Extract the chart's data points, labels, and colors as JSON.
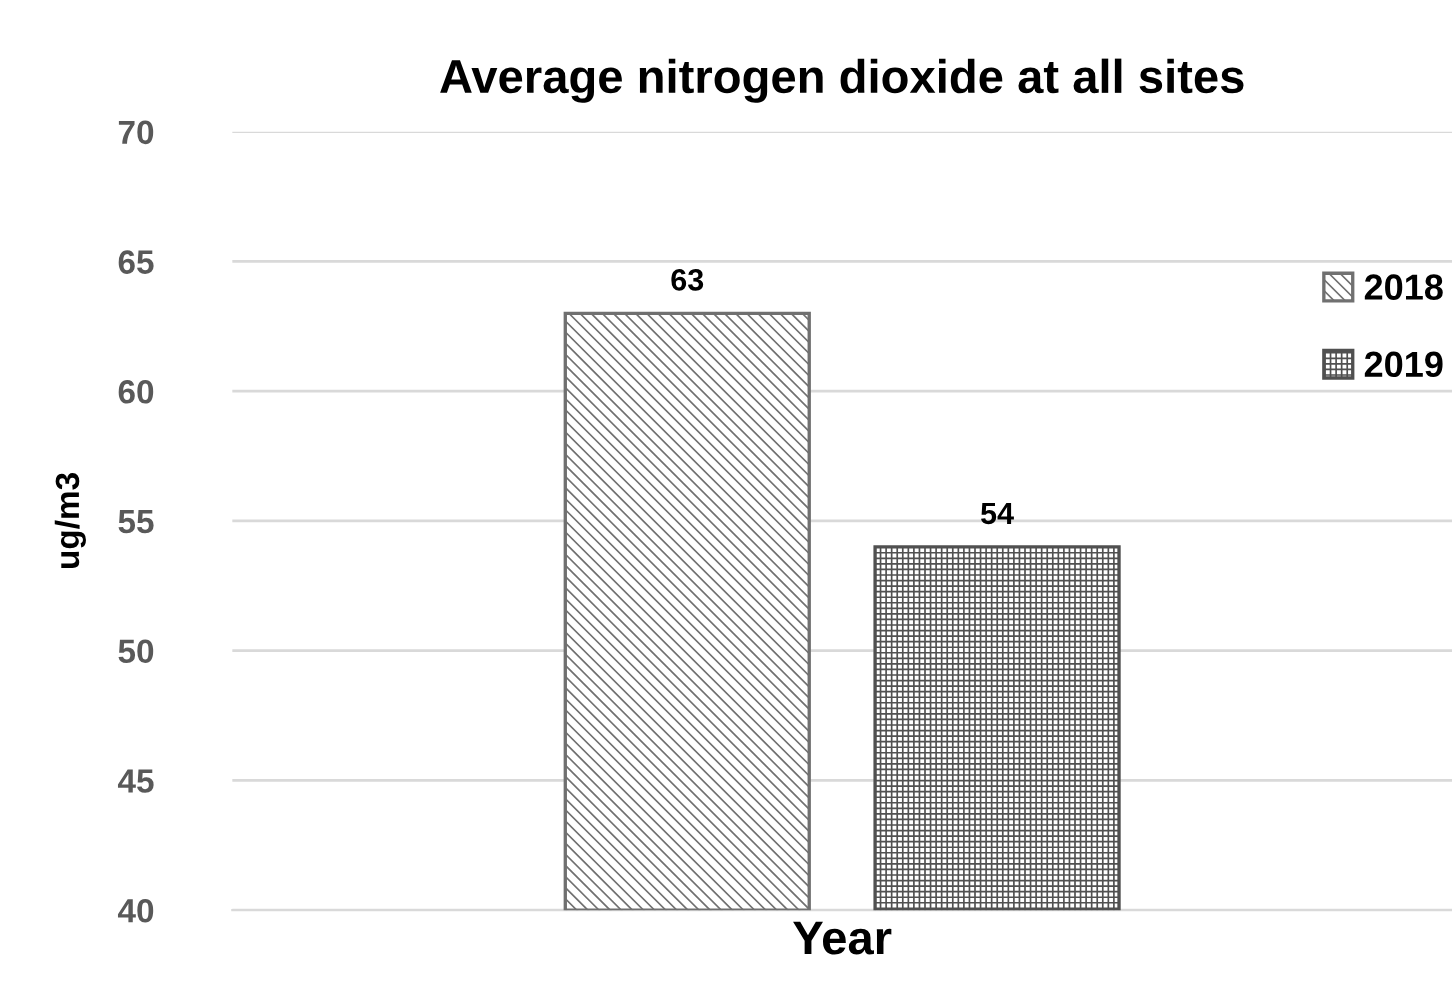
{
  "chart_data": {
    "type": "bar",
    "title": "Average nitrogen dioxide at all sites",
    "xlabel": "Year",
    "ylabel": "ug/m3",
    "categories": [
      null
    ],
    "series": [
      {
        "name": "2018",
        "color": "#707070",
        "values": [
          63
        ]
      },
      {
        "name": "2019",
        "color": "#505050",
        "values": [
          54
        ]
      }
    ],
    "ylim": [
      40,
      70
    ],
    "yticks": [
      40,
      45,
      50,
      55,
      60,
      65,
      70
    ],
    "grid": "y",
    "legend": "top right",
    "data_labels": true
  }
}
